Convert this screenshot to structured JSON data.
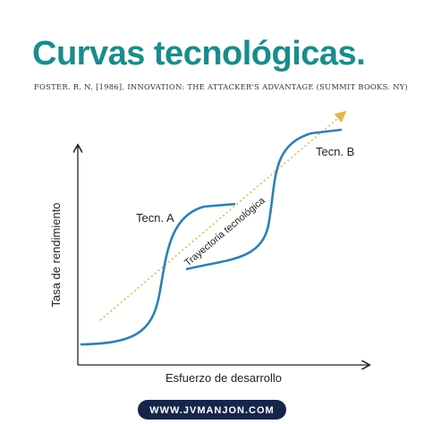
{
  "header": {
    "title": "Curvas tecnológicas.",
    "citation": "FOSTER. R. N. [1986]. INNOVATION: THE ATTACKER'S ADVANTAGE (SUMMIT BOOKS. NY)"
  },
  "diagram": {
    "curve_a_label": "Tecn. A",
    "curve_b_label": "Tecn. B",
    "trajectory_label": "Trayectoria tecnológica",
    "y_axis_label": "Tasa de rendimiento",
    "x_axis_label": "Esfuerzo de desarrollo"
  },
  "footer": {
    "url": "WWW.JVMANJON.COM"
  }
}
